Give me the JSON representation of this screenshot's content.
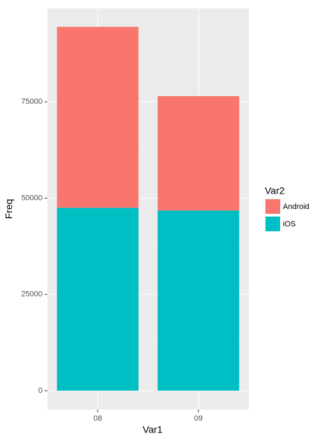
{
  "chart_data": {
    "type": "bar",
    "stacked": true,
    "x_label": "Var1",
    "y_label": "Freq",
    "categories": [
      "08",
      "09"
    ],
    "series": [
      {
        "name": "Android",
        "color": "#F8766D",
        "values": [
          47000,
          29700
        ]
      },
      {
        "name": "iOS",
        "color": "#00BFC4",
        "values": [
          47500,
          46800
        ]
      }
    ],
    "legend_title": "Var2",
    "legend": "right",
    "ylim": [
      -4900,
      99300
    ],
    "yticks": [
      0,
      25000,
      50000,
      75000
    ],
    "grid": true
  }
}
